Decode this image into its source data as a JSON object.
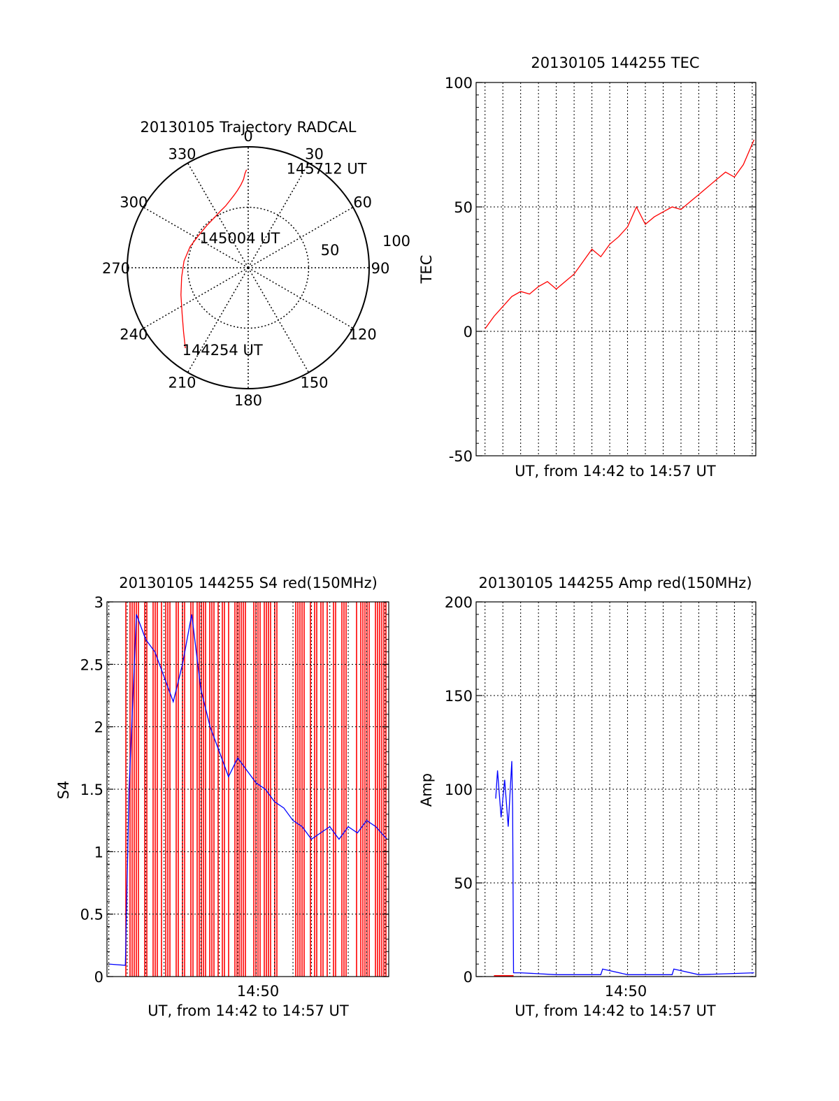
{
  "colors": {
    "red": "#ff0000",
    "blue": "#0000ff",
    "axis": "#000000",
    "grid": "#000000"
  },
  "chart_data": [
    {
      "type": "polar-trajectory",
      "title": "20130105 Trajectory RADCAL",
      "azimuth_labels": [
        "0",
        "30",
        "60",
        "90",
        "120",
        "150",
        "180",
        "210",
        "240",
        "270",
        "300",
        "330"
      ],
      "radial_labels": [
        "50",
        "100"
      ],
      "elevation_range": [
        0,
        90
      ],
      "grid": true,
      "trajectory": {
        "color": "red",
        "points": [
          [
            218,
            14
          ],
          [
            225,
            22
          ],
          [
            235,
            30
          ],
          [
            248,
            36
          ],
          [
            262,
            40
          ],
          [
            276,
            42
          ],
          [
            290,
            44
          ],
          [
            304,
            46
          ],
          [
            316,
            46
          ],
          [
            326,
            45
          ],
          [
            334,
            43
          ],
          [
            340,
            41
          ],
          [
            345,
            38
          ],
          [
            349,
            35
          ],
          [
            352,
            32
          ],
          [
            355,
            28
          ],
          [
            357,
            24
          ],
          [
            358,
            20
          ],
          [
            359,
            17
          ]
        ]
      },
      "annotations": [
        {
          "text": "145712 UT",
          "at": [
            20,
            10
          ]
        },
        {
          "text": "145004 UT",
          "at": [
            302,
            46
          ]
        },
        {
          "text": "144254 UT",
          "at": [
            220,
            12
          ]
        }
      ]
    },
    {
      "type": "line",
      "title": "20130105 144255 TEC",
      "xlabel": "UT, from 14:42 to 14:57 UT",
      "ylabel": "TEC",
      "ylim": [
        -50,
        100
      ],
      "yticks": [
        "100",
        "50",
        "0",
        "-50"
      ],
      "xlim_minutes": [
        -0.5,
        15.2
      ],
      "grid": true,
      "series": [
        {
          "color": "red",
          "x": [
            0,
            0.5,
            1,
            1.5,
            2,
            2.5,
            3,
            3.5,
            4,
            4.5,
            5,
            5.5,
            6,
            6.5,
            7,
            7.5,
            8,
            8.5,
            9,
            9.5,
            10,
            10.5,
            11,
            11.5,
            12,
            12.5,
            13,
            13.5,
            14,
            14.5,
            15.1
          ],
          "y": [
            1,
            6,
            10,
            14,
            16,
            15,
            18,
            20,
            17,
            20,
            23,
            28,
            33,
            30,
            35,
            38,
            42,
            50,
            43,
            46,
            48,
            50,
            49,
            52,
            55,
            58,
            61,
            64,
            62,
            67,
            77
          ]
        }
      ]
    },
    {
      "type": "line",
      "title": "20130105 144255 S4 red(150MHz)",
      "xlabel": "UT, from 14:42 to 14:57 UT",
      "ylabel": "S4",
      "ylim": [
        0,
        3
      ],
      "yticks": [
        "3",
        "2.5",
        "2",
        "1.5",
        "1",
        "0.5",
        "0"
      ],
      "xticks": [
        "14:50"
      ],
      "xlim_minutes": [
        -0.1,
        15.2
      ],
      "grid": true,
      "series": [
        {
          "color": "blue",
          "x": [
            0,
            0.9,
            1.1,
            1.5,
            2,
            2.5,
            3,
            3.5,
            4,
            4.5,
            5,
            5.5,
            6,
            6.5,
            7,
            7.5,
            8,
            8.5,
            9,
            9.5,
            10,
            10.5,
            11,
            11.5,
            12,
            12.5,
            13,
            13.5,
            14,
            14.5,
            15.1
          ],
          "y": [
            0.1,
            0.09,
            1.5,
            2.9,
            2.7,
            2.6,
            2.4,
            2.2,
            2.5,
            2.9,
            2.3,
            2.0,
            1.8,
            1.6,
            1.75,
            1.65,
            1.55,
            1.5,
            1.4,
            1.35,
            1.25,
            1.2,
            1.1,
            1.15,
            1.2,
            1.1,
            1.2,
            1.15,
            1.25,
            1.2,
            1.1
          ]
        }
      ]
    },
    {
      "type": "line",
      "title": "20130105 144255 Amp red(150MHz)",
      "xlabel": "UT, from 14:42 to 14:57 UT",
      "ylabel": "Amp",
      "ylim": [
        0,
        200
      ],
      "yticks": [
        "200",
        "150",
        "100",
        "50",
        "0"
      ],
      "xticks": [
        "14:50"
      ],
      "xlim_minutes": [
        -0.5,
        15.2
      ],
      "grid": true,
      "series": [
        {
          "color": "blue",
          "x": [
            0.6,
            0.7,
            0.9,
            1.1,
            1.3,
            1.5,
            1.55,
            1.6,
            2,
            4,
            6,
            6.5,
            6.6,
            8,
            10.5,
            10.6,
            12,
            15.1
          ],
          "y": [
            95,
            110,
            85,
            105,
            80,
            115,
            90,
            2,
            2,
            1,
            1,
            1,
            4,
            1,
            1,
            4,
            1,
            2
          ]
        },
        {
          "color": "red",
          "x": [
            0.5,
            1.6
          ],
          "y": [
            0.5,
            0.5
          ]
        }
      ]
    }
  ]
}
